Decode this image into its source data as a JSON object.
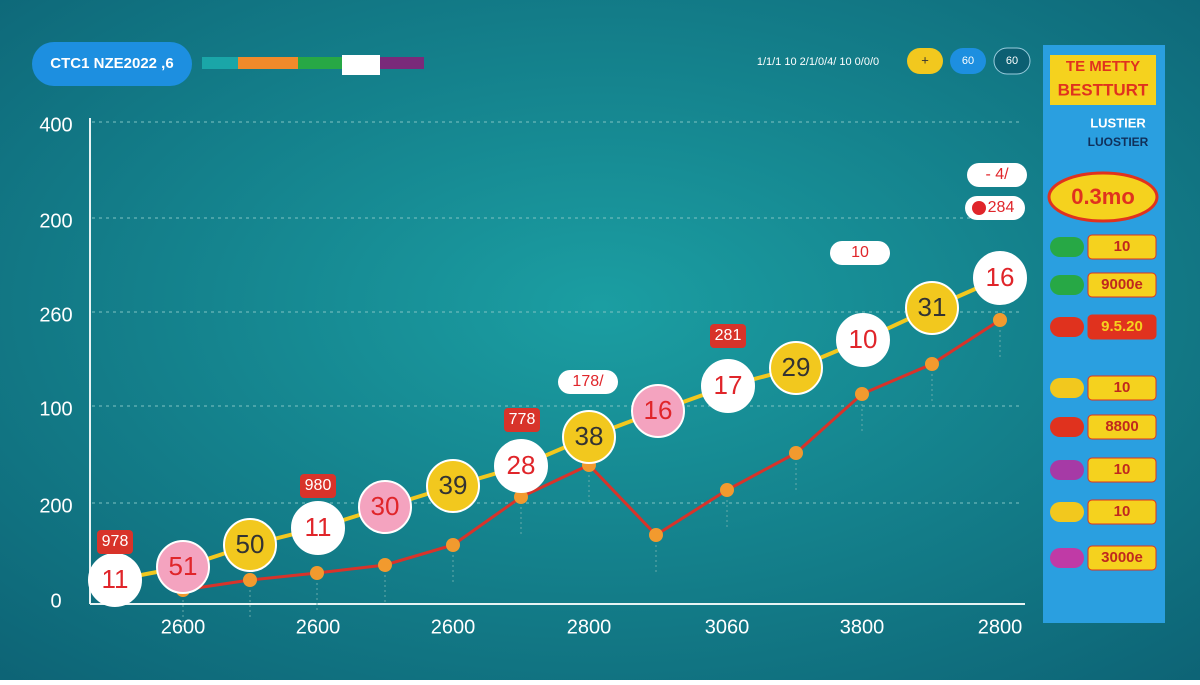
{
  "header": {
    "badge": "CTC1 NZE2022 ,6",
    "status": "1/1/1 10 2/1/0/4/ 10 0/0/0",
    "buttons": [
      "+",
      "60",
      "60"
    ]
  },
  "axis": {
    "y_labels": [
      "400",
      "200",
      "260",
      "100",
      "200",
      "0"
    ],
    "x_labels": [
      "2600",
      "2600",
      "2600",
      "2800",
      "3060",
      "3800",
      "2800"
    ]
  },
  "bubbles": [
    "11",
    "51",
    "50",
    "11",
    "30",
    "39",
    "28",
    "38",
    "16",
    "17",
    "29",
    "10",
    "31",
    "16"
  ],
  "callouts": [
    "978",
    "980",
    "778",
    "178/",
    "281",
    "10",
    "- 4/",
    "284"
  ],
  "panel": {
    "title": [
      "TE METTY",
      "BESTTURT"
    ],
    "subtitle": [
      "LUSTIER",
      "LUOSTIER"
    ],
    "headline": "0.3mo",
    "rows": [
      "10",
      "9000e",
      "9.5.20",
      "10",
      "8800",
      "10",
      "10",
      "3000e"
    ]
  }
}
